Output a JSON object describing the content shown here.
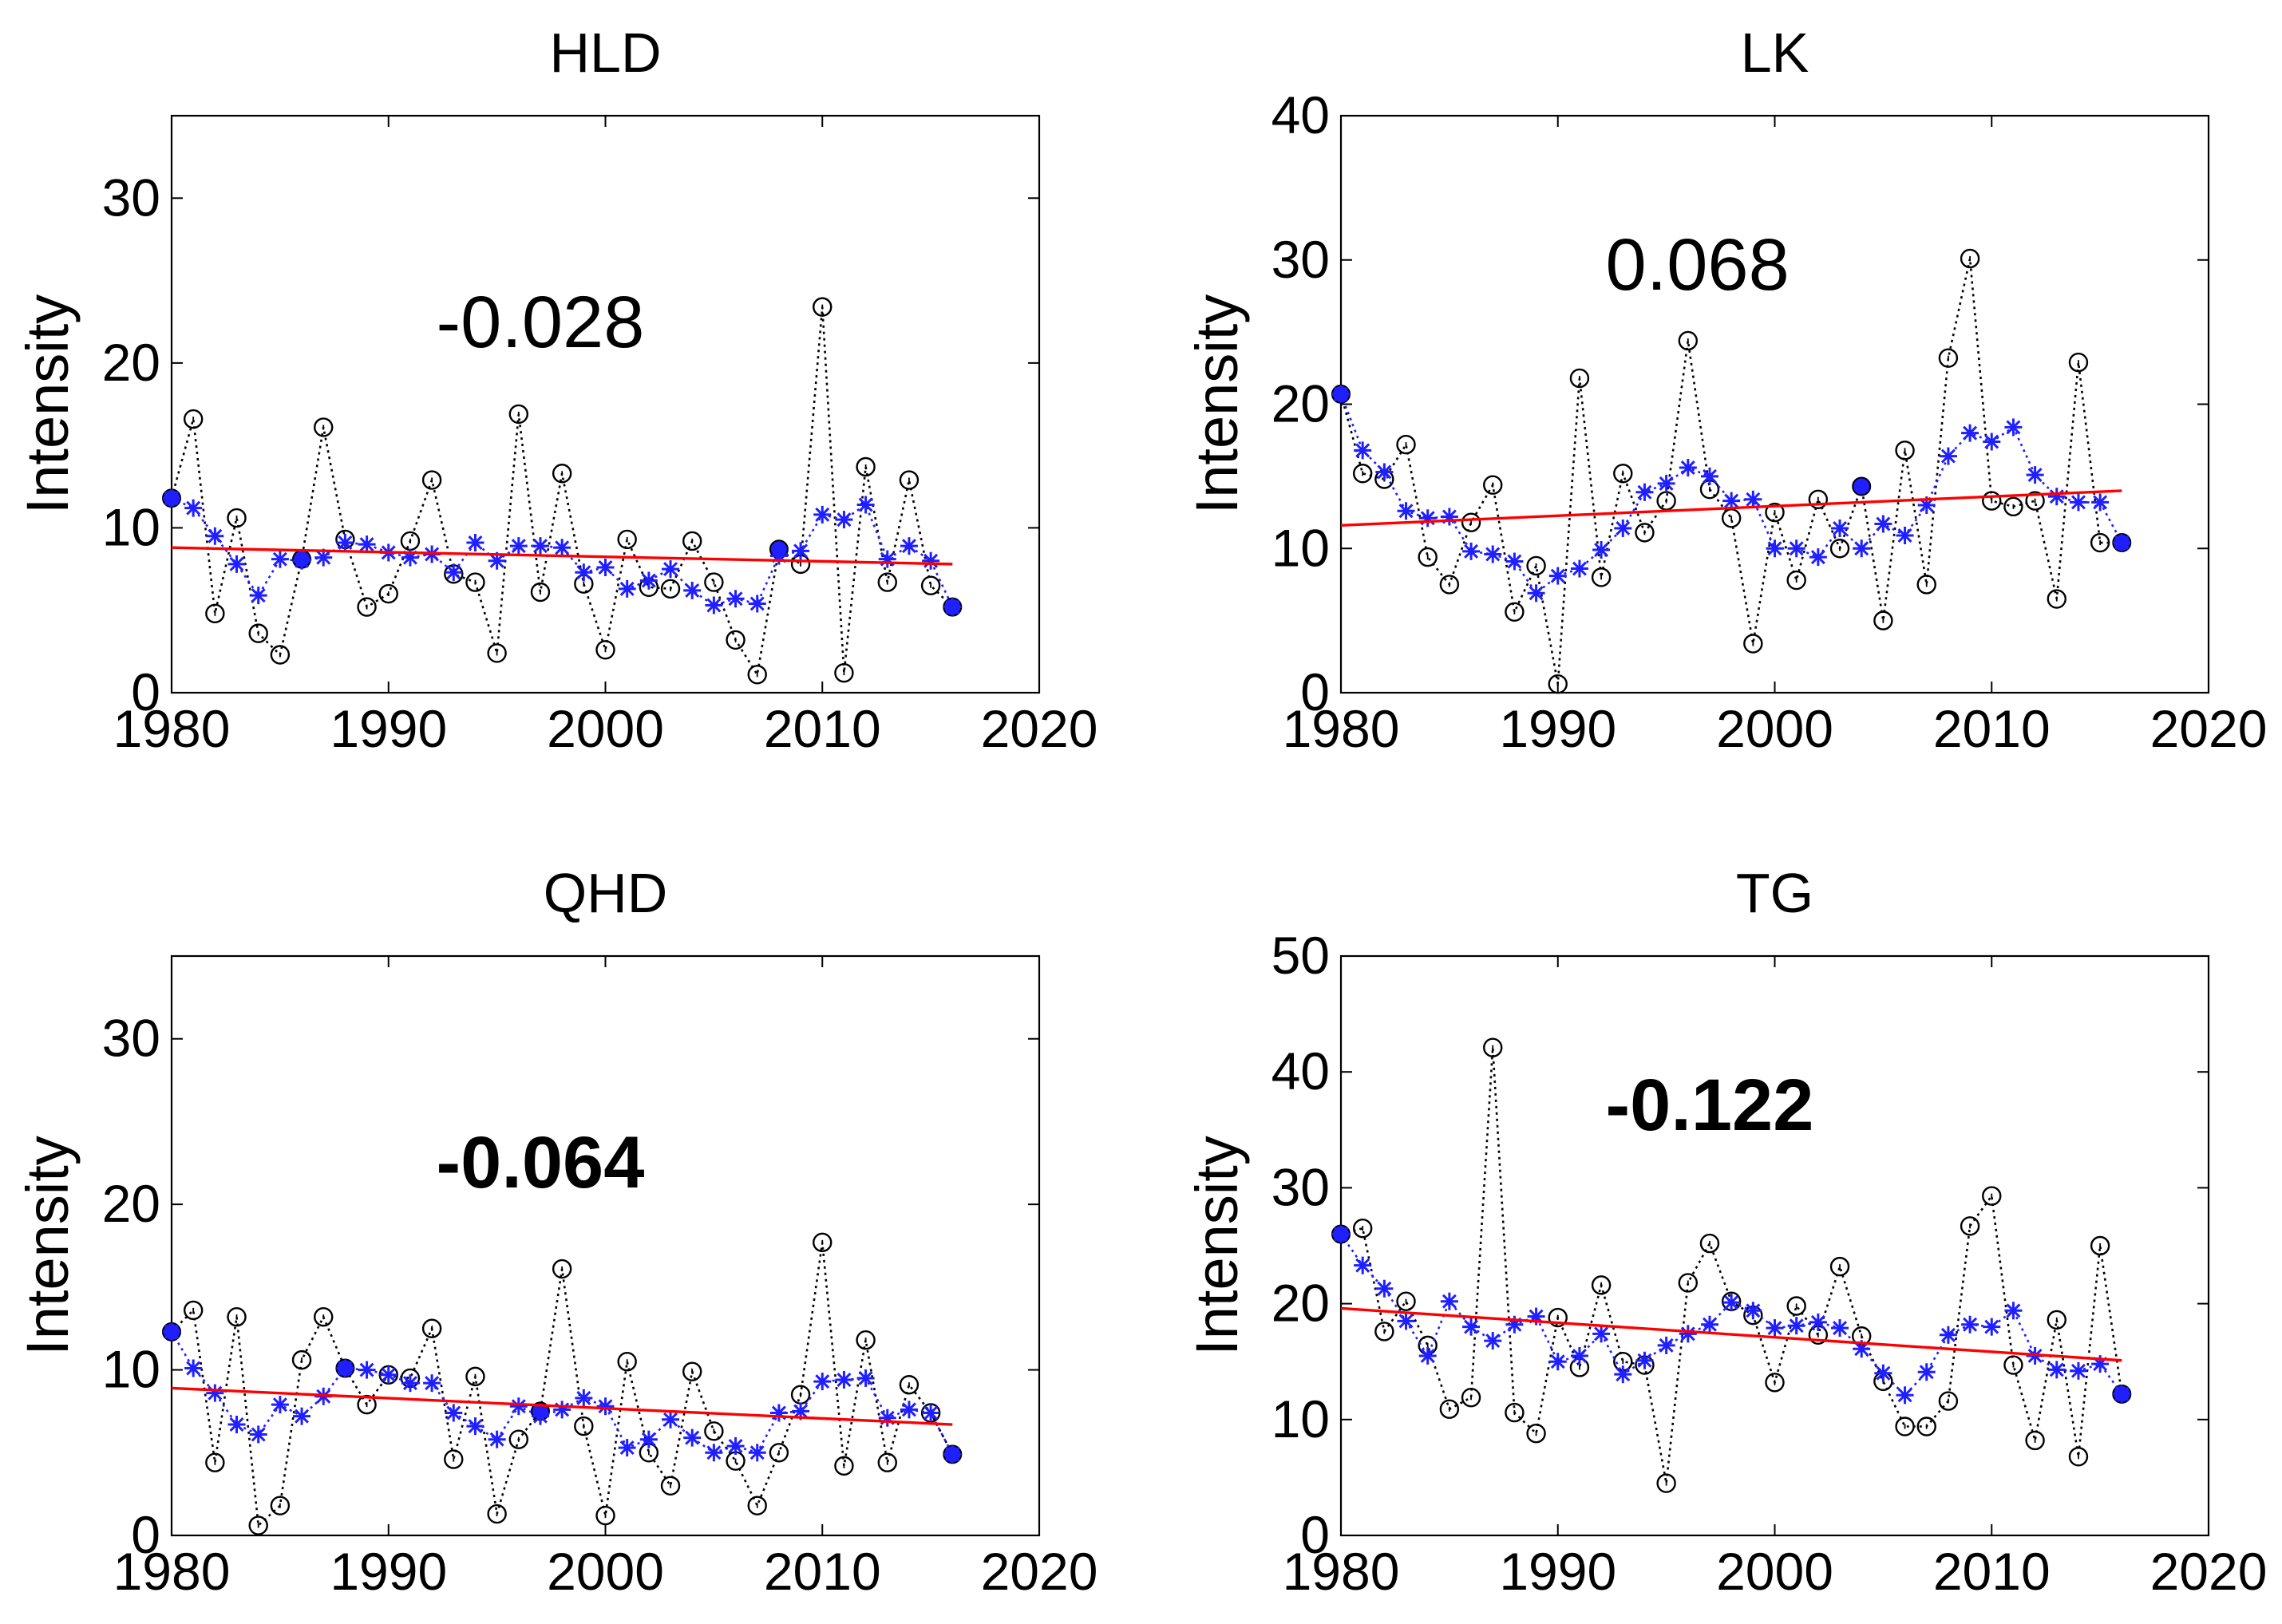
{
  "chart_data": [
    {
      "type": "line",
      "title": "HLD",
      "ylabel": "Intensity",
      "xlim": [
        1980,
        2020
      ],
      "ylim": [
        0,
        35
      ],
      "xticks": [
        "1980",
        "1990",
        "2000",
        "2010",
        "2020"
      ],
      "yticks": [
        "0",
        "10",
        "20",
        "30"
      ],
      "slope_label": "-0.028",
      "slope_bold": false,
      "x": [
        1980,
        1981,
        1982,
        1983,
        1984,
        1985,
        1986,
        1987,
        1988,
        1989,
        1990,
        1991,
        1992,
        1993,
        1994,
        1995,
        1996,
        1997,
        1998,
        1999,
        2000,
        2001,
        2002,
        2003,
        2004,
        2005,
        2006,
        2007,
        2008,
        2009,
        2010,
        2011,
        2012,
        2013,
        2014,
        2015,
        2016
      ],
      "series": [
        {
          "role": "annual",
          "color": "#000000",
          "values": [
            11.8,
            16.6,
            4.8,
            10.6,
            3.6,
            2.3,
            8.1,
            16.1,
            9.3,
            5.2,
            6.0,
            9.2,
            12.9,
            7.2,
            6.7,
            2.4,
            16.9,
            6.1,
            13.3,
            6.6,
            2.6,
            9.3,
            6.4,
            6.3,
            9.2,
            6.7,
            3.2,
            1.1,
            8.7,
            7.8,
            23.4,
            1.2,
            13.7,
            6.7,
            12.9,
            6.5,
            5.2
          ]
        },
        {
          "role": "smoothed",
          "color": "#1f1fff",
          "values": [
            11.8,
            11.2,
            9.5,
            7.8,
            5.9,
            8.1,
            8.0,
            8.2,
            9.1,
            9.0,
            8.5,
            8.2,
            8.4,
            7.3,
            9.1,
            8.0,
            8.9,
            8.9,
            8.8,
            7.3,
            7.6,
            6.3,
            6.8,
            7.5,
            6.2,
            5.3,
            5.7,
            5.4,
            8.3,
            8.6,
            10.8,
            10.5,
            11.4,
            8.1,
            8.9,
            8.0,
            5.2
          ]
        },
        {
          "role": "trend",
          "color": "#ff0000",
          "values_at_ends": [
            8.8,
            7.8
          ]
        }
      ],
      "highlighted_years": [
        1980,
        1986,
        2008,
        2016
      ]
    },
    {
      "type": "line",
      "title": "LK",
      "ylabel": "Intensity",
      "xlim": [
        1980,
        2020
      ],
      "ylim": [
        0,
        40
      ],
      "xticks": [
        "1980",
        "1990",
        "2000",
        "2010",
        "2020"
      ],
      "yticks": [
        "0",
        "10",
        "20",
        "30",
        "40"
      ],
      "slope_label": "0.068",
      "slope_bold": false,
      "x": [
        1980,
        1981,
        1982,
        1983,
        1984,
        1985,
        1986,
        1987,
        1988,
        1989,
        1990,
        1991,
        1992,
        1993,
        1994,
        1995,
        1996,
        1997,
        1998,
        1999,
        2000,
        2001,
        2002,
        2003,
        2004,
        2005,
        2006,
        2007,
        2008,
        2009,
        2010,
        2011,
        2012,
        2013,
        2014,
        2015,
        2016
      ],
      "series": [
        {
          "role": "annual",
          "color": "#000000",
          "values": [
            20.7,
            15.2,
            14.8,
            17.2,
            9.4,
            7.5,
            11.8,
            14.4,
            5.6,
            8.8,
            0.6,
            21.8,
            8.0,
            15.2,
            11.1,
            13.3,
            24.4,
            14.1,
            12.1,
            3.4,
            12.5,
            7.8,
            13.4,
            10.0,
            14.3,
            5.0,
            16.8,
            7.5,
            23.2,
            30.1,
            13.3,
            12.9,
            13.3,
            6.5,
            22.9,
            10.4,
            10.4
          ]
        },
        {
          "role": "smoothed",
          "color": "#1f1fff",
          "values": [
            20.7,
            16.8,
            15.3,
            12.6,
            12.1,
            12.2,
            9.8,
            9.6,
            9.1,
            6.9,
            8.1,
            8.6,
            9.9,
            11.4,
            13.9,
            14.5,
            15.6,
            15.0,
            13.3,
            13.4,
            10.0,
            10.0,
            9.4,
            11.4,
            10.0,
            11.7,
            10.9,
            13.0,
            16.4,
            18.0,
            17.4,
            18.4,
            15.1,
            13.6,
            13.2,
            13.2,
            10.4
          ]
        },
        {
          "role": "trend",
          "color": "#ff0000",
          "values_at_ends": [
            11.6,
            14.0
          ]
        }
      ],
      "highlighted_years": [
        1980,
        2004,
        2016
      ]
    },
    {
      "type": "line",
      "title": "QHD",
      "ylabel": "Intensity",
      "xlim": [
        1980,
        2020
      ],
      "ylim": [
        0,
        35
      ],
      "xticks": [
        "1980",
        "1990",
        "2000",
        "2010",
        "2020"
      ],
      "yticks": [
        "0",
        "10",
        "20",
        "30"
      ],
      "slope_label": "-0.064",
      "slope_bold": true,
      "x": [
        1980,
        1981,
        1982,
        1983,
        1984,
        1985,
        1986,
        1987,
        1988,
        1989,
        1990,
        1991,
        1992,
        1993,
        1994,
        1995,
        1996,
        1997,
        1998,
        1999,
        2000,
        2001,
        2002,
        2003,
        2004,
        2005,
        2006,
        2007,
        2008,
        2009,
        2010,
        2011,
        2012,
        2013,
        2014,
        2015,
        2016
      ],
      "series": [
        {
          "role": "annual",
          "color": "#000000",
          "values": [
            12.3,
            13.6,
            4.4,
            13.2,
            0.6,
            1.8,
            10.6,
            13.2,
            10.1,
            7.9,
            9.7,
            9.5,
            12.5,
            4.6,
            9.6,
            1.3,
            5.8,
            7.5,
            16.1,
            6.6,
            1.2,
            10.5,
            5.0,
            3.0,
            9.9,
            6.3,
            4.5,
            1.8,
            5.0,
            8.5,
            17.7,
            4.2,
            11.8,
            4.4,
            9.1,
            7.4,
            4.9
          ]
        },
        {
          "role": "smoothed",
          "color": "#1f1fff",
          "values": [
            12.3,
            10.1,
            8.6,
            6.7,
            6.1,
            7.9,
            7.2,
            8.4,
            10.1,
            10.0,
            9.7,
            9.2,
            9.2,
            7.4,
            6.6,
            5.8,
            7.8,
            7.2,
            7.6,
            8.3,
            7.8,
            5.3,
            5.8,
            7.0,
            5.9,
            5.0,
            5.4,
            5.0,
            7.4,
            7.5,
            9.3,
            9.4,
            9.5,
            7.1,
            7.6,
            7.4,
            4.9
          ]
        },
        {
          "role": "trend",
          "color": "#ff0000",
          "values_at_ends": [
            8.9,
            6.7
          ]
        }
      ],
      "highlighted_years": [
        1980,
        1988,
        1997,
        2016
      ]
    },
    {
      "type": "line",
      "title": "TG",
      "ylabel": "Intensity",
      "xlim": [
        1980,
        2020
      ],
      "ylim": [
        0,
        50
      ],
      "xticks": [
        "1980",
        "1990",
        "2000",
        "2010",
        "2020"
      ],
      "yticks": [
        "0",
        "10",
        "20",
        "30",
        "40",
        "50"
      ],
      "slope_label": "-0.122",
      "slope_bold": true,
      "x": [
        1980,
        1981,
        1982,
        1983,
        1984,
        1985,
        1986,
        1987,
        1988,
        1989,
        1990,
        1991,
        1992,
        1993,
        1994,
        1995,
        1996,
        1997,
        1998,
        1999,
        2000,
        2001,
        2002,
        2003,
        2004,
        2005,
        2006,
        2007,
        2008,
        2009,
        2010,
        2011,
        2012,
        2013,
        2014,
        2015,
        2016
      ],
      "series": [
        {
          "role": "annual",
          "color": "#000000",
          "values": [
            26.0,
            26.5,
            17.6,
            20.2,
            16.4,
            10.9,
            11.9,
            42.1,
            10.6,
            8.8,
            18.8,
            14.5,
            21.6,
            15.0,
            14.7,
            4.5,
            21.8,
            25.2,
            20.2,
            19.0,
            13.2,
            19.8,
            17.3,
            23.2,
            17.2,
            13.3,
            9.4,
            9.4,
            11.6,
            26.7,
            29.3,
            14.7,
            8.2,
            18.6,
            6.8,
            25.0,
            12.2
          ]
        },
        {
          "role": "smoothed",
          "color": "#1f1fff",
          "values": [
            26.0,
            23.3,
            21.3,
            18.5,
            15.5,
            20.2,
            18.0,
            16.8,
            18.2,
            18.9,
            15.0,
            15.5,
            17.4,
            13.9,
            15.1,
            16.4,
            17.4,
            18.2,
            20.1,
            19.4,
            17.9,
            18.1,
            18.4,
            17.9,
            16.1,
            14.0,
            12.1,
            14.1,
            17.3,
            18.2,
            18.0,
            19.4,
            15.5,
            14.3,
            14.2,
            14.8,
            12.2
          ]
        },
        {
          "role": "trend",
          "color": "#ff0000",
          "values_at_ends": [
            19.6,
            15.1
          ]
        }
      ],
      "highlighted_years": [
        1980,
        2016
      ]
    }
  ]
}
